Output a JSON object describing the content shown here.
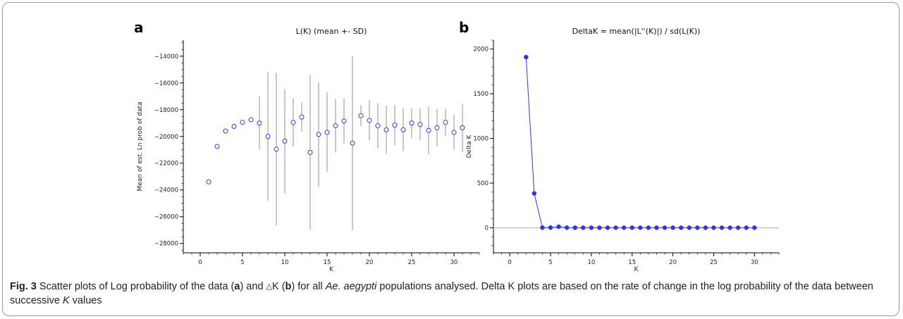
{
  "panel_a": {
    "letter": "a"
  },
  "panel_b": {
    "letter": "b"
  },
  "caption": {
    "label": "Fig. 3",
    "t1": " Scatter plots of Log probability of the data (",
    "a": "a",
    "t2": ") and ",
    "delta": "△",
    "t3": "K (",
    "b": "b",
    "t4": ") for all ",
    "species": "Ae. aegypti",
    "t5": " populations analysed. Delta K plots are based on the rate of change in the log probability of the data between successive ",
    "k": "K",
    "t6": " values"
  },
  "colors": {
    "marker": "#3333ee",
    "error_bar": "#bbbbbb",
    "zero_line": "#bbbbbb"
  },
  "chart_data": [
    {
      "type": "scatter",
      "title": "L(K) (mean +- SD)",
      "xlabel": "K",
      "ylabel": "Mean of est. Ln prob of data",
      "xlim": [
        -2,
        33
      ],
      "ylim": [
        -28700,
        -12800
      ],
      "xticks": [
        0,
        5,
        10,
        15,
        20,
        25,
        30
      ],
      "yticks": [
        -28000,
        -26000,
        -24000,
        -22000,
        -20000,
        -18000,
        -16000,
        -14000
      ],
      "grid": false,
      "marker": "open-circle",
      "x": [
        1,
        2,
        3,
        4,
        5,
        6,
        7,
        8,
        9,
        10,
        11,
        12,
        13,
        14,
        15,
        16,
        17,
        18,
        19,
        20,
        21,
        22,
        23,
        24,
        25,
        26,
        27,
        28,
        29,
        30,
        31
      ],
      "mean": [
        -23400,
        -20750,
        -19600,
        -19250,
        -18950,
        -18750,
        -19000,
        -20000,
        -20950,
        -20350,
        -18950,
        -18550,
        -21200,
        -19850,
        -19700,
        -19200,
        -18850,
        -20500,
        -18450,
        -18800,
        -19200,
        -19500,
        -19150,
        -19500,
        -19000,
        -19100,
        -19550,
        -19350,
        -18950,
        -19700,
        -19350
      ],
      "sd": [
        0,
        0,
        0,
        0,
        0,
        0,
        2000,
        4800,
        5700,
        3900,
        1800,
        1100,
        5800,
        3900,
        3000,
        2000,
        1700,
        6500,
        800,
        1500,
        1700,
        1800,
        1500,
        1600,
        1100,
        1200,
        1800,
        1400,
        1000,
        1300,
        1800
      ]
    },
    {
      "type": "line",
      "title": "DeltaK = mean(|L''(K)|) / sd(L(K))",
      "xlabel": "K",
      "ylabel": "Delta K",
      "xlim": [
        -2,
        33
      ],
      "ylim": [
        -280,
        2100
      ],
      "xticks": [
        0,
        5,
        10,
        15,
        20,
        25,
        30
      ],
      "yticks": [
        0,
        500,
        1000,
        1500,
        2000
      ],
      "grid": false,
      "zero_line": true,
      "x": [
        2,
        3,
        4,
        5,
        6,
        7,
        8,
        9,
        10,
        11,
        12,
        13,
        14,
        15,
        16,
        17,
        18,
        19,
        20,
        21,
        22,
        23,
        24,
        25,
        26,
        27,
        28,
        29,
        30
      ],
      "y": [
        1910,
        385,
        2,
        2,
        12,
        2,
        1,
        1,
        1,
        1,
        1,
        1,
        1,
        1,
        1,
        1,
        1,
        1,
        1,
        1,
        1,
        1,
        1,
        1,
        1,
        1,
        1,
        1,
        1
      ]
    }
  ]
}
